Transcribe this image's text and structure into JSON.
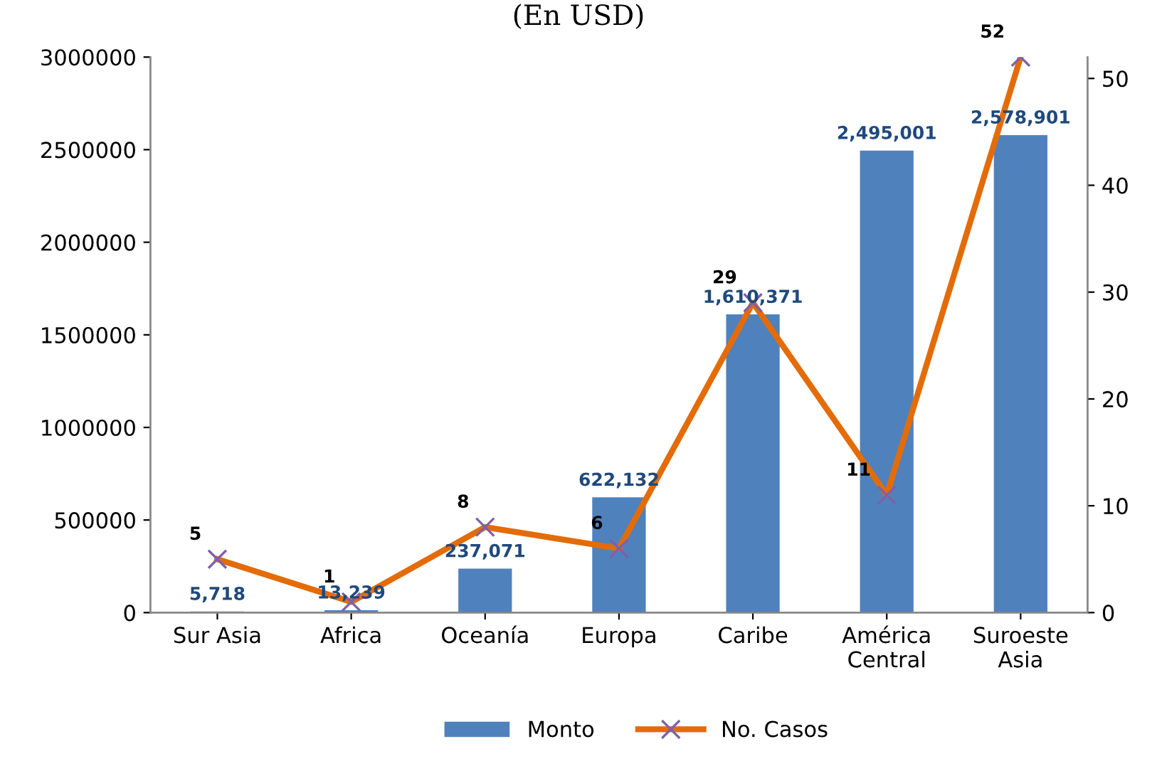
{
  "chart_data": {
    "type": "bar",
    "title": "(En USD)",
    "categories": [
      "Sur Asia",
      "Africa",
      "Oceanía",
      "Europa",
      "Caribe",
      "América\nCentral",
      "Suroeste\nAsia"
    ],
    "series": [
      {
        "name": "Monto",
        "type": "bar",
        "color": "#4f81bd",
        "values": [
          5718,
          13239,
          237071,
          622132,
          1610371,
          2495001,
          2578901
        ],
        "value_labels": [
          "5,718",
          "13,239",
          "237,071",
          "622,132",
          "1,610,371",
          "2,495,001",
          "2,578,901"
        ]
      },
      {
        "name": "No. Casos",
        "type": "line",
        "axis": "y2",
        "color": "#e36c09",
        "values": [
          5,
          1,
          8,
          6,
          29,
          11,
          52
        ],
        "value_labels": [
          "5",
          "1",
          "8",
          "6",
          "29",
          "11",
          "52"
        ]
      }
    ],
    "ylim": [
      0,
      3000000
    ],
    "yticks": [
      0,
      500000,
      1000000,
      1500000,
      2000000,
      2500000,
      3000000
    ],
    "y2lim": [
      0,
      52
    ],
    "y2ticks": [
      0,
      10,
      20,
      30,
      40,
      50
    ],
    "marker": "cross",
    "line_style": "solid",
    "legend": "bottom",
    "grid": false
  }
}
